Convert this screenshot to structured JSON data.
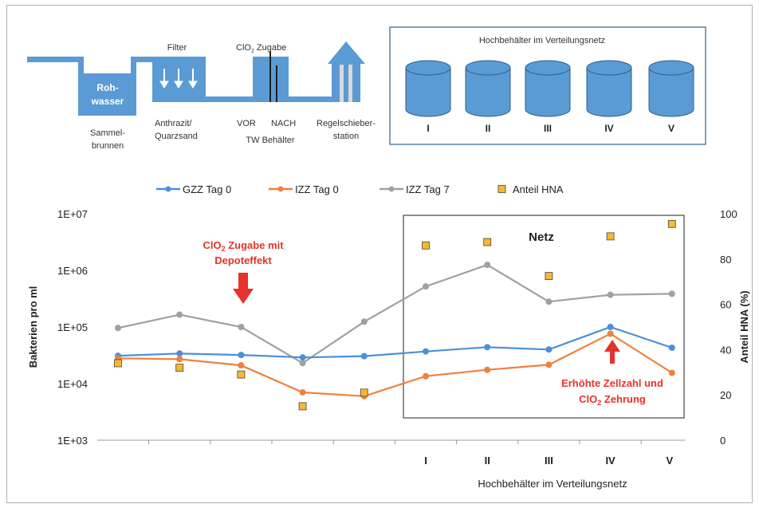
{
  "schematic": {
    "labels": {
      "rohwasser_line1": "Roh-",
      "rohwasser_line2": "wasser",
      "sammel_line1": "Sammel-",
      "sammel_line2": "brunnen",
      "filter": "Filter",
      "anthrazit_line1": "Anthrazit/",
      "anthrazit_line2": "Quarzsand",
      "clo2_prefix": "ClO",
      "clo2_sub": "2",
      "clo2_suffix": " Zugabe",
      "vor": "VOR",
      "nach": "NACH",
      "tw_behaelter": "TW Behälter",
      "regel_line1": "Regelschieber-",
      "regel_line2": "station"
    },
    "network_box": {
      "title": "Hochbehälter im Verteilungsnetz",
      "tanks": [
        "I",
        "II",
        "III",
        "IV",
        "V"
      ]
    },
    "colors": {
      "pipe": "#5b9bd5",
      "tank": "#5b9bd5",
      "tank_edge": "#2e5f8a",
      "box": "#2e5f8a"
    }
  },
  "legend": [
    {
      "label": "GZZ Tag 0",
      "color": "#4a90d9",
      "kind": "line"
    },
    {
      "label": "IZZ Tag 0",
      "color": "#f0803c",
      "kind": "line"
    },
    {
      "label": "IZZ Tag 7",
      "color": "#a0a0a0",
      "kind": "line"
    },
    {
      "label": "Anteil HNA",
      "color": "#f5b830",
      "kind": "square"
    }
  ],
  "annotations": {
    "clo2_depot_line1_prefix": "ClO",
    "clo2_depot_line1_sub": "2",
    "clo2_depot_line1_suffix": " Zugabe mit",
    "clo2_depot_line2": "Depoteffekt",
    "erhoehte_line1": "Erhöhte Zellzahl und",
    "erhoehte_line2_prefix": "ClO",
    "erhoehte_line2_sub": "2",
    "erhoehte_line2_suffix": " Zehrung",
    "netz": "Netz",
    "annotation_color": "#e8312a"
  },
  "chart_data": {
    "type": "line",
    "x": [
      1,
      2,
      3,
      4,
      5,
      6,
      7,
      8,
      9,
      10
    ],
    "xlabel": "Hochbehälter im Verteilungsnetz",
    "x_tick_labels": [
      "",
      "",
      "",
      "",
      "",
      "I",
      "II",
      "III",
      "IV",
      "V"
    ],
    "ylabel": "Bakterien pro ml",
    "y_scale": "log",
    "ylim": [
      1000,
      10000000
    ],
    "y_tick_labels": [
      "1E+03",
      "1E+04",
      "1E+05",
      "1E+06",
      "1E+07"
    ],
    "y2label": "Anteil HNA (%)",
    "y2lim": [
      0,
      100
    ],
    "y2_tick_labels": [
      "0",
      "20",
      "40",
      "60",
      "80",
      "100"
    ],
    "series": [
      {
        "name": "GZZ Tag 0",
        "axis": "left",
        "color": "#4a90d9",
        "values": [
          31000,
          34000,
          32000,
          29000,
          30500,
          37000,
          44000,
          40000,
          100000,
          43000
        ]
      },
      {
        "name": "IZZ Tag 0",
        "axis": "left",
        "color": "#f0803c",
        "values": [
          28000,
          27000,
          21000,
          7000,
          6000,
          13500,
          17500,
          21500,
          76000,
          15500
        ]
      },
      {
        "name": "IZZ Tag 7",
        "axis": "left",
        "color": "#a0a0a0",
        "values": [
          96000,
          165000,
          100000,
          23000,
          124000,
          520000,
          1250000,
          280000,
          370000,
          385000
        ]
      },
      {
        "name": "Anteil HNA",
        "axis": "right",
        "type": "scatter",
        "color": "#f5b830",
        "values": [
          34,
          32,
          29,
          15,
          21,
          86,
          87.5,
          72.5,
          90,
          95.5
        ]
      }
    ]
  }
}
